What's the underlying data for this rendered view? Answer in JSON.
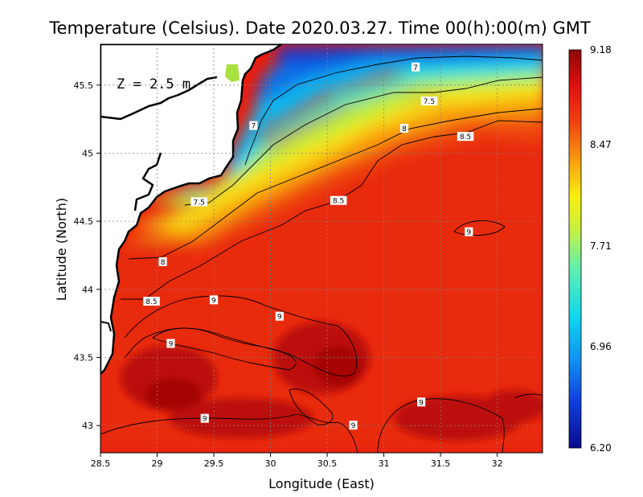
{
  "chart_data": {
    "type": "heatmap",
    "title": "Temperature (Celsius). Date 2020.03.27. Time 00(h):00(m)  GMT",
    "xlabel": "Longitude (East)",
    "ylabel": "Latitude (North)",
    "xlim": [
      28.5,
      32.4
    ],
    "ylim": [
      42.8,
      45.8
    ],
    "x_ticks": [
      "28.5",
      "29",
      "29.5",
      "30",
      "30.5",
      "31",
      "31.5",
      "32"
    ],
    "y_ticks": [
      "43",
      "43.5",
      "44",
      "44.5",
      "45",
      "45.5"
    ],
    "grid": true,
    "depth_label": "Z = 2.5 m",
    "colorbar": {
      "min": 6.2,
      "max": 9.18,
      "ticks": [
        "6.20",
        "6.96",
        "7.71",
        "8.47",
        "9.18"
      ]
    },
    "colors": {
      "land": "#ffffff",
      "coast": "#000000",
      "min_color": "#0a0a8c",
      "max_color": "#8e0606"
    },
    "contour_levels": [
      7,
      7.5,
      8,
      8.5,
      9
    ],
    "contour_labels": [
      {
        "text": "7",
        "lon": 31.28,
        "lat": 45.63
      },
      {
        "text": "7",
        "lon": 29.85,
        "lat": 45.2
      },
      {
        "text": "7.5",
        "lon": 31.4,
        "lat": 45.38
      },
      {
        "text": "7.5",
        "lon": 29.37,
        "lat": 44.64
      },
      {
        "text": "8",
        "lon": 31.18,
        "lat": 45.18
      },
      {
        "text": "8",
        "lon": 29.05,
        "lat": 44.2
      },
      {
        "text": "8.5",
        "lon": 31.72,
        "lat": 45.12
      },
      {
        "text": "8.5",
        "lon": 30.6,
        "lat": 44.65
      },
      {
        "text": "8.5",
        "lon": 28.95,
        "lat": 43.91
      },
      {
        "text": "9",
        "lon": 31.75,
        "lat": 44.42
      },
      {
        "text": "9",
        "lon": 29.5,
        "lat": 43.92
      },
      {
        "text": "9",
        "lon": 30.08,
        "lat": 43.8
      },
      {
        "text": "9",
        "lon": 29.12,
        "lat": 43.6
      },
      {
        "text": "9",
        "lon": 31.33,
        "lat": 43.17
      },
      {
        "text": "9",
        "lon": 29.42,
        "lat": 43.05
      },
      {
        "text": "9",
        "lon": 30.73,
        "lat": 43.0
      }
    ]
  }
}
